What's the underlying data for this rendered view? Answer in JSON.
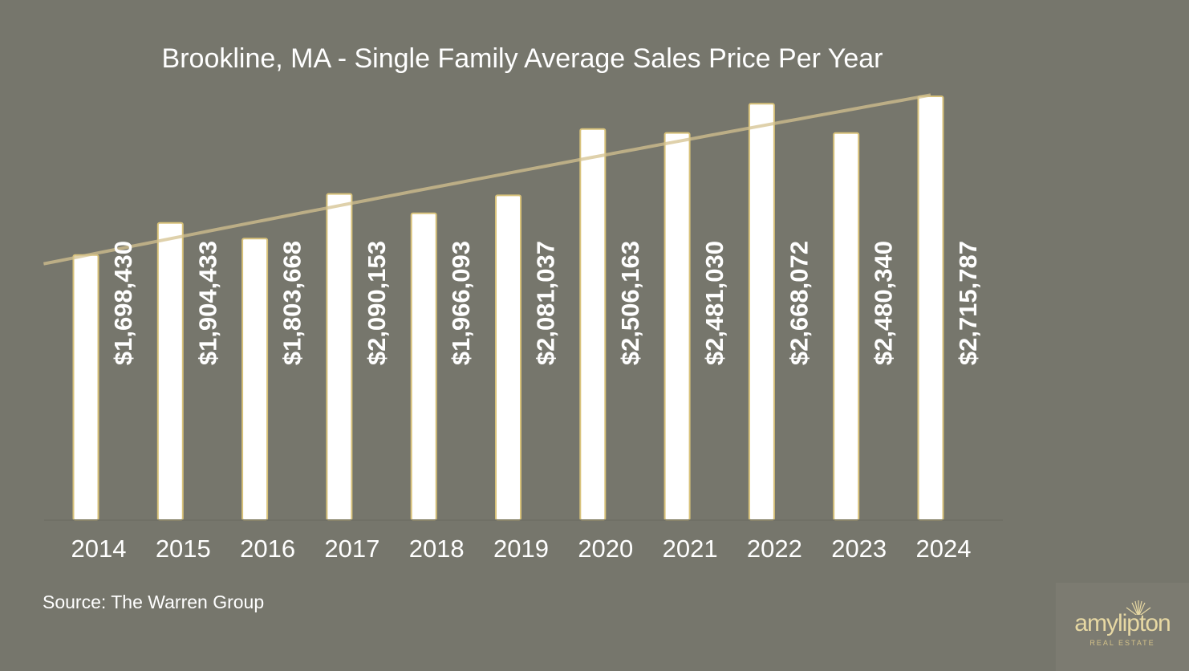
{
  "chart_data": {
    "type": "bar",
    "title": "Brookline, MA - Single Family Average Sales Price Per Year",
    "categories": [
      "2014",
      "2015",
      "2016",
      "2017",
      "2018",
      "2019",
      "2020",
      "2021",
      "2022",
      "2023",
      "2024"
    ],
    "values": [
      1698430,
      1904433,
      1803668,
      2090153,
      1966093,
      2081037,
      2506163,
      2481030,
      2668072,
      2480340,
      2715787
    ],
    "value_labels": [
      "$1,698,430",
      "$1,904,433",
      "$1,803,668",
      "$2,090,153",
      "$1,966,093",
      "$2,081,037",
      "$2,506,163",
      "$2,481,030",
      "$2,668,072",
      "$2,480,340",
      "$2,715,787"
    ],
    "xlabel": "",
    "ylabel": "",
    "ylim": [
      0,
      2715787
    ],
    "trendline": "polynomial",
    "grid": false,
    "legend": "none"
  },
  "footer": {
    "source": "Source: The Warren Group"
  },
  "logo": {
    "name": "amylipton",
    "subtitle": "REAL ESTATE"
  },
  "colors": {
    "background": "#76766c",
    "bar_fill": "#ffffff",
    "bar_edge": "#d8c27a",
    "trend": "#d4c28f",
    "logo_gold": "#e7d8a3"
  }
}
